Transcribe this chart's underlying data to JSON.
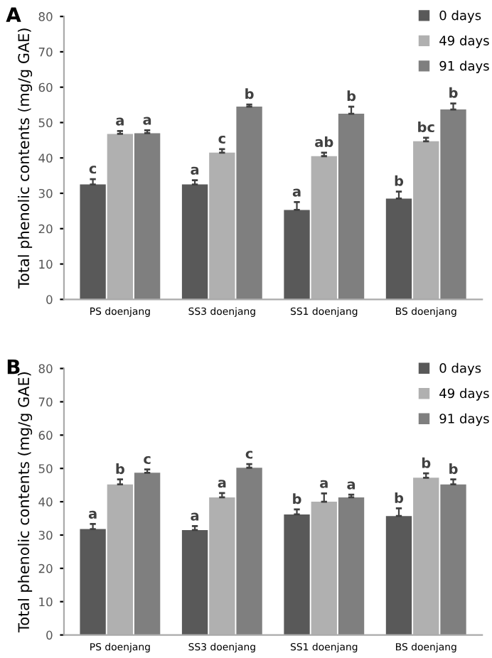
{
  "chart_data": [
    {
      "type": "bar",
      "title": "A",
      "ylabel": "Total phenolic contents (mg/g GAE)",
      "categories": [
        "PS doenjang",
        "SS3 doenjang",
        "SS1 doenjang",
        "BS doenjang"
      ],
      "series": [
        {
          "name": "0 days",
          "color": "#595959",
          "values": [
            32.5,
            32.5,
            25.3,
            28.5
          ],
          "errors": [
            1.5,
            1.2,
            2.2,
            2.0
          ]
        },
        {
          "name": "49 days",
          "color": "#b0b0b0",
          "values": [
            46.8,
            41.5,
            40.5,
            44.7
          ],
          "errors": [
            0.8,
            1.0,
            1.0,
            1.0
          ]
        },
        {
          "name": "91 days",
          "color": "#7f7f7f",
          "values": [
            47.0,
            54.5,
            52.5,
            53.7
          ],
          "errors": [
            0.8,
            0.6,
            2.0,
            1.7
          ]
        }
      ],
      "ylim": [
        0,
        80
      ],
      "yticks": [
        0,
        10,
        20,
        30,
        40,
        50,
        60,
        70,
        80
      ],
      "grid": false,
      "legend": "top right",
      "annotations": [
        "c",
        "a",
        "a",
        "a",
        "c",
        "b",
        "a",
        "ab",
        "b",
        "b",
        "bc",
        "b"
      ]
    },
    {
      "type": "bar",
      "title": "B",
      "ylabel": "Total phenolic contents (mg/g GAE)",
      "categories": [
        "PS doenjang",
        "SS3 doenjang",
        "SS1 doenjang",
        "BS doenjang"
      ],
      "series": [
        {
          "name": "0 days",
          "color": "#595959",
          "values": [
            31.8,
            31.5,
            36.2,
            35.7
          ],
          "errors": [
            1.5,
            1.2,
            1.5,
            2.3
          ]
        },
        {
          "name": "49 days",
          "color": "#b0b0b0",
          "values": [
            45.2,
            41.3,
            40.0,
            47.2
          ],
          "errors": [
            1.5,
            1.3,
            2.5,
            1.3
          ]
        },
        {
          "name": "91 days",
          "color": "#7f7f7f",
          "values": [
            48.7,
            50.2,
            41.3,
            45.2
          ],
          "errors": [
            1.0,
            1.1,
            0.8,
            1.5
          ]
        }
      ],
      "ylim": [
        0,
        80
      ],
      "yticks": [
        0,
        10,
        20,
        30,
        40,
        50,
        60,
        70,
        80
      ],
      "grid": false,
      "legend": "top right",
      "annotations": [
        "a",
        "b",
        "c",
        "a",
        "a",
        "c",
        "b",
        "a",
        "a",
        "b",
        "b",
        "b"
      ]
    }
  ]
}
